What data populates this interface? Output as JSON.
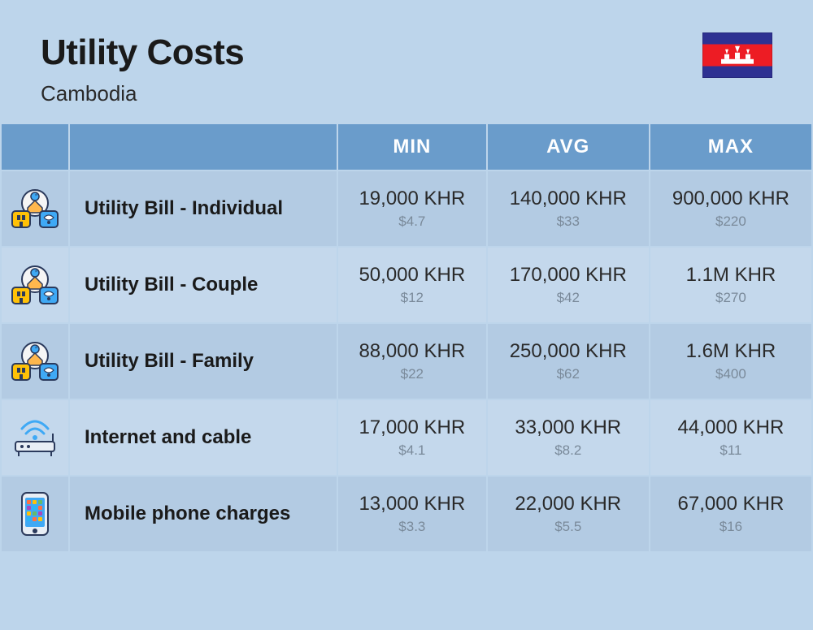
{
  "header": {
    "title": "Utility Costs",
    "subtitle": "Cambodia"
  },
  "columns": {
    "min": "MIN",
    "avg": "AVG",
    "max": "MAX"
  },
  "rows": [
    {
      "icon": "utility",
      "label": "Utility Bill - Individual",
      "min_khr": "19,000 KHR",
      "min_usd": "$4.7",
      "avg_khr": "140,000 KHR",
      "avg_usd": "$33",
      "max_khr": "900,000 KHR",
      "max_usd": "$220"
    },
    {
      "icon": "utility",
      "label": "Utility Bill - Couple",
      "min_khr": "50,000 KHR",
      "min_usd": "$12",
      "avg_khr": "170,000 KHR",
      "avg_usd": "$42",
      "max_khr": "1.1M KHR",
      "max_usd": "$270"
    },
    {
      "icon": "utility",
      "label": "Utility Bill - Family",
      "min_khr": "88,000 KHR",
      "min_usd": "$22",
      "avg_khr": "250,000 KHR",
      "avg_usd": "$62",
      "max_khr": "1.6M KHR",
      "max_usd": "$400"
    },
    {
      "icon": "internet",
      "label": "Internet and cable",
      "min_khr": "17,000 KHR",
      "min_usd": "$4.1",
      "avg_khr": "33,000 KHR",
      "avg_usd": "$8.2",
      "max_khr": "44,000 KHR",
      "max_usd": "$11"
    },
    {
      "icon": "phone",
      "label": "Mobile phone charges",
      "min_khr": "13,000 KHR",
      "min_usd": "$3.3",
      "avg_khr": "22,000 KHR",
      "avg_usd": "$5.5",
      "max_khr": "67,000 KHR",
      "max_usd": "$16"
    }
  ],
  "colors": {
    "page_bg": "#bdd5eb",
    "header_bg": "#6a9ccb",
    "row_odd": "#b3cbe3",
    "row_even": "#c4d8ec",
    "text_primary": "#1a1a1a",
    "text_secondary": "#7a8a9a",
    "icon_blue": "#3fa9f5",
    "icon_yellow": "#ffc107",
    "icon_dark": "#2b3a5c"
  }
}
